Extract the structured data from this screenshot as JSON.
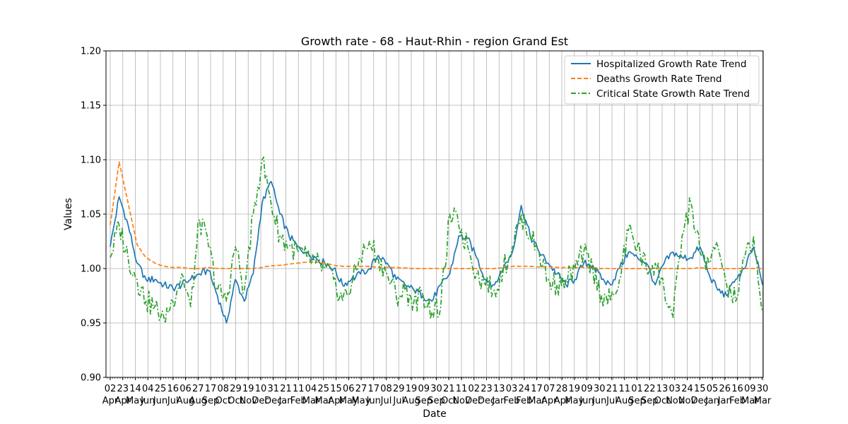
{
  "chart_data": {
    "type": "line",
    "title": "Growth rate - 68 - Haut-Rhin - region Grand Est",
    "xlabel": "Date",
    "ylabel": "Values",
    "ylim": [
      0.9,
      1.2
    ],
    "yticks": [
      "0.90",
      "0.95",
      "1.00",
      "1.05",
      "1.10",
      "1.15",
      "1.20"
    ],
    "grid": true,
    "legend_position": "top-right",
    "x_tick_days": [
      "02",
      "23",
      "14",
      "04",
      "25",
      "16",
      "06",
      "27",
      "17",
      "08",
      "29",
      "19",
      "10",
      "31",
      "21",
      "11",
      "04",
      "25",
      "15",
      "06",
      "27",
      "17",
      "08",
      "29",
      "19",
      "09",
      "30",
      "21",
      "11",
      "02",
      "23",
      "13",
      "03",
      "24",
      "17",
      "07",
      "28",
      "19",
      "09",
      "30",
      "21",
      "11",
      "01",
      "22",
      "13",
      "03",
      "24",
      "15",
      "05",
      "26",
      "16",
      "09",
      "30"
    ],
    "x_tick_months": [
      "Apr",
      "Apr",
      "May",
      "Jun",
      "Jun",
      "Jul",
      "Aug",
      "Aug",
      "Sep",
      "Oct",
      "Oct",
      "Nov",
      "Dec",
      "Dec",
      "Jan",
      "Feb",
      "Mar",
      "Mar",
      "Apr",
      "May",
      "May",
      "Jun",
      "Jul",
      "Jul",
      "Aug",
      "Sep",
      "Sep",
      "Oct",
      "Nov",
      "Dec",
      "Dec",
      "Jan",
      "Feb",
      "Feb",
      "Mar",
      "Apr",
      "Apr",
      "May",
      "Jun",
      "Jun",
      "Jul",
      "Aug",
      "Sep",
      "Sep",
      "Oct",
      "Nov",
      "Nov",
      "Dec",
      "Jan",
      "Jan",
      "Feb",
      "Mar",
      "Mar"
    ],
    "series": [
      {
        "name": "Hospitalized Growth Rate Trend",
        "color": "#1f77b4",
        "style": "solid",
        "values": [
          1.02,
          1.066,
          1.04,
          1.005,
          0.99,
          0.99,
          0.985,
          0.982,
          0.985,
          0.99,
          0.995,
          0.998,
          0.975,
          0.95,
          0.99,
          0.97,
          0.995,
          1.06,
          1.08,
          1.05,
          1.03,
          1.02,
          1.015,
          1.01,
          1.005,
          1.0,
          0.985,
          0.99,
          0.995,
          1.0,
          1.012,
          1.005,
          0.99,
          0.985,
          0.98,
          0.975,
          0.97,
          0.985,
          0.995,
          1.03,
          1.028,
          1.01,
          0.99,
          0.985,
          1.0,
          1.015,
          1.058,
          1.03,
          1.015,
          1.005,
          0.995,
          0.985,
          0.99,
          1.005,
          1.003,
          0.99,
          0.985,
          1.0,
          1.015,
          1.01,
          1.005,
          0.985,
          1.005,
          1.015,
          1.01,
          1.01,
          1.02,
          0.995,
          0.98,
          0.975,
          0.99,
          1.0,
          1.02,
          0.985
        ]
      },
      {
        "name": "Deaths Growth Rate Trend",
        "color": "#ff7f0e",
        "style": "dashed",
        "values": [
          1.04,
          1.098,
          1.06,
          1.022,
          1.01,
          1.005,
          1.002,
          1.001,
          1.001,
          1.0,
          1.0,
          1.001,
          1.0,
          1.0,
          1.0,
          1.0,
          1.0,
          1.001,
          1.0025,
          1.003,
          1.004,
          1.005,
          1.006,
          1.006,
          1.005,
          1.003,
          1.002,
          1.002,
          1.002,
          1.002,
          1.001,
          1.001,
          1.001,
          1.0005,
          1.0,
          1.0,
          1.0,
          1.0,
          1.0,
          1.0,
          1.0,
          1.0,
          1.0,
          1.0,
          1.001,
          1.002,
          1.002,
          1.002,
          1.0015,
          1.0015,
          1.001,
          1.001,
          1.001,
          1.001,
          1.001,
          1.0,
          1.0,
          1.0,
          1.0,
          1.0,
          1.0,
          1.0,
          1.0,
          1.0,
          1.0,
          1.0,
          1.001,
          1.0,
          1.0,
          1.0,
          1.0,
          1.0,
          1.0,
          1.0
        ]
      },
      {
        "name": "Critical State Growth Rate Trend",
        "color": "#2ca02c",
        "style": "dashdot",
        "values": [
          1.01,
          1.04,
          1.01,
          0.99,
          0.97,
          0.965,
          0.955,
          0.97,
          0.995,
          0.965,
          1.045,
          1.02,
          0.98,
          0.97,
          1.02,
          0.98,
          1.05,
          1.1,
          1.06,
          1.03,
          1.02,
          1.015,
          1.01,
          1.005,
          1.0,
          0.99,
          0.97,
          0.985,
          1.01,
          1.025,
          1.01,
          0.995,
          0.975,
          0.98,
          0.97,
          0.975,
          0.96,
          0.965,
          1.05,
          1.04,
          1.02,
          0.995,
          0.985,
          0.98,
          1.0,
          1.02,
          1.05,
          1.03,
          1.015,
          0.99,
          0.985,
          0.99,
          1.0,
          1.015,
          1.0,
          0.975,
          0.97,
          0.99,
          1.035,
          1.02,
          1.0,
          1.005,
          0.98,
          0.955,
          1.03,
          1.06,
          1.015,
          1.005,
          1.02,
          0.985,
          0.97,
          1.01,
          1.03,
          0.96
        ]
      }
    ]
  }
}
